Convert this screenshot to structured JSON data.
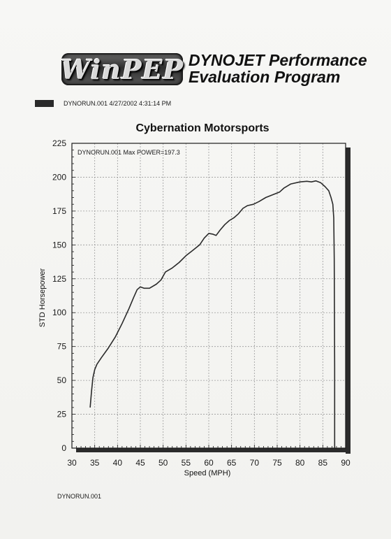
{
  "header": {
    "logo_text": "WinPEP",
    "program_title_line1": "DYNOJET Performance",
    "program_title_line2": "Evaluation Program",
    "run_info": "DYNORUN.001 4/27/2002 4:31:14 PM"
  },
  "footer": {
    "run_file": "DYNORUN.001"
  },
  "colors": {
    "curve": "#2a2a2a",
    "grid": "#9a9a9a",
    "shadow": "#2b2b2b"
  },
  "chart_data": {
    "type": "line",
    "title": "Cybernation Motorsports",
    "xlabel": "Speed (MPH)",
    "ylabel": "STD Horsepower",
    "annotation": "DYNORUN.001  Max POWER=197.3",
    "xlim": [
      30,
      90
    ],
    "ylim": [
      0,
      225
    ],
    "x_ticks": [
      30,
      35,
      40,
      45,
      50,
      55,
      60,
      65,
      70,
      75,
      80,
      85,
      90
    ],
    "y_ticks": [
      0,
      25,
      50,
      75,
      100,
      125,
      150,
      175,
      200,
      225
    ],
    "grid": true,
    "series": [
      {
        "points": [
          [
            34.0,
            30
          ],
          [
            34.3,
            42
          ],
          [
            34.6,
            52
          ],
          [
            35.0,
            58
          ],
          [
            35.5,
            62
          ],
          [
            36.5,
            67
          ],
          [
            38.0,
            74
          ],
          [
            39.5,
            82
          ],
          [
            41.0,
            92
          ],
          [
            42.5,
            103
          ],
          [
            43.5,
            111
          ],
          [
            44.3,
            117
          ],
          [
            45.0,
            119
          ],
          [
            45.8,
            118
          ],
          [
            47.0,
            118
          ],
          [
            48.5,
            121
          ],
          [
            49.5,
            124
          ],
          [
            50.5,
            130
          ],
          [
            52.0,
            133
          ],
          [
            53.5,
            137
          ],
          [
            55.0,
            142
          ],
          [
            56.5,
            146
          ],
          [
            58.0,
            150
          ],
          [
            59.0,
            155
          ],
          [
            60.0,
            158.5
          ],
          [
            60.8,
            158
          ],
          [
            61.6,
            157
          ],
          [
            62.5,
            161
          ],
          [
            63.5,
            165
          ],
          [
            64.5,
            168
          ],
          [
            65.5,
            170
          ],
          [
            66.5,
            173
          ],
          [
            67.5,
            177
          ],
          [
            68.5,
            179
          ],
          [
            69.8,
            180
          ],
          [
            71.0,
            182
          ],
          [
            72.5,
            185
          ],
          [
            74.0,
            187
          ],
          [
            75.5,
            189
          ],
          [
            76.5,
            192
          ],
          [
            78.0,
            195
          ],
          [
            80.0,
            196.5
          ],
          [
            81.5,
            197
          ],
          [
            82.5,
            196.5
          ],
          [
            83.5,
            197.3
          ],
          [
            84.5,
            196
          ],
          [
            85.5,
            193
          ],
          [
            86.3,
            190
          ],
          [
            86.8,
            185
          ],
          [
            87.2,
            180
          ],
          [
            87.4,
            170
          ],
          [
            87.5,
            140
          ],
          [
            87.55,
            100
          ],
          [
            87.6,
            60
          ],
          [
            87.6,
            20
          ],
          [
            87.6,
            0
          ]
        ]
      }
    ]
  }
}
